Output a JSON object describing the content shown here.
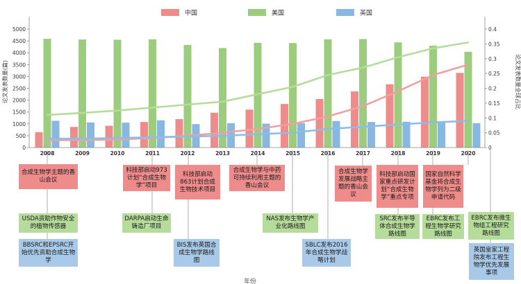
{
  "chart_data": {
    "type": "bar",
    "legend_placement": "top",
    "xlabel": "年份",
    "ylabel_left": "论文发表数量(篇)",
    "ylabel_right": "论文发表数量全球占比",
    "ylim_left": [
      0,
      5000
    ],
    "ylim_right": [
      0,
      0.4
    ],
    "yticks_left": [
      "0",
      "500",
      "1000",
      "1500",
      "2000",
      "2500",
      "3000",
      "3500",
      "4000",
      "4500",
      "5000"
    ],
    "yticks_right": [
      "0",
      "0.05",
      "0.1",
      "0.15",
      "0.2",
      "0.25",
      "0.3",
      "0.35",
      "0.4"
    ],
    "categories": [
      "2008",
      "2009",
      "2010",
      "2011",
      "2012",
      "2013",
      "2014",
      "2015",
      "2016",
      "2017",
      "2018",
      "2019",
      "2020"
    ],
    "series": [
      {
        "name": "中国",
        "color": "#ee8c8c",
        "values": [
          650,
          870,
          920,
          1080,
          1200,
          1470,
          1600,
          1840,
          2050,
          2370,
          2670,
          2990,
          3150
        ],
        "share": [
          0.025,
          0.025,
          0.027,
          0.032,
          0.04,
          0.05,
          0.063,
          0.08,
          0.105,
          0.14,
          0.19,
          0.245,
          0.28
        ]
      },
      {
        "name": "美国",
        "color": "#9ccc7e",
        "values": [
          4590,
          4560,
          4550,
          4570,
          4330,
          4200,
          4420,
          4410,
          4570,
          4580,
          4440,
          4300,
          4040
        ],
        "share": [
          0.11,
          0.117,
          0.125,
          0.135,
          0.145,
          0.155,
          0.18,
          0.205,
          0.245,
          0.27,
          0.305,
          0.335,
          0.355
        ]
      },
      {
        "name": "英国",
        "color": "#88b8e2",
        "values": [
          1130,
          1060,
          1050,
          1150,
          990,
          1030,
          1010,
          1030,
          1120,
          1080,
          1090,
          1100,
          1030
        ],
        "share": [
          0.03,
          0.03,
          0.032,
          0.035,
          0.037,
          0.04,
          0.045,
          0.05,
          0.063,
          0.07,
          0.078,
          0.085,
          0.09
        ]
      }
    ]
  },
  "events": {
    "cn": [
      {
        "id": "cn-2008",
        "text": "合成生物学主题的香山会议"
      },
      {
        "id": "cn-2011",
        "text": "科技部启动973计划“合成生物学”项目"
      },
      {
        "id": "cn-2012",
        "text": "科技部启动863计划合成生物技术项目"
      },
      {
        "id": "cn-2014",
        "text": "合成生物学与中药可持续利用主题的香山会议"
      },
      {
        "id": "cn-2017",
        "text": "合成生物学发展战略主题的香山会议"
      },
      {
        "id": "cn-2018",
        "text": "科技部启动国家重点研发计划“合成生物学”重点专项"
      },
      {
        "id": "cn-2019",
        "text": "国家自然科学基金将合成生物学列为二级申请代码"
      }
    ],
    "us": [
      {
        "id": "us-2008",
        "text": "USDA资助作物安全的植物传感器"
      },
      {
        "id": "us-2011",
        "text": "DARPA启动生命铸造厂项目"
      },
      {
        "id": "us-2015",
        "text": "NAS发布生物学产业化路线图"
      },
      {
        "id": "us-2018",
        "text": "SRC发布半导体合成生物学路线图"
      },
      {
        "id": "us-2019",
        "text": "EBRC发布工程生物学研究路线图"
      },
      {
        "id": "us-2020",
        "text": "EBRC发布微生物组工程研究路线图"
      }
    ],
    "uk": [
      {
        "id": "uk-2008",
        "text": "BBSRC和EPSRC开始优先资助合成生物学"
      },
      {
        "id": "uk-2012",
        "text": "BIS发布英国合成生物学路线图"
      },
      {
        "id": "uk-2016",
        "text": "SBLC发布2016年合成生物学战略计划"
      },
      {
        "id": "uk-2020",
        "text": "英国皇家工程院发布工程生物学优先发展事项"
      }
    ]
  }
}
